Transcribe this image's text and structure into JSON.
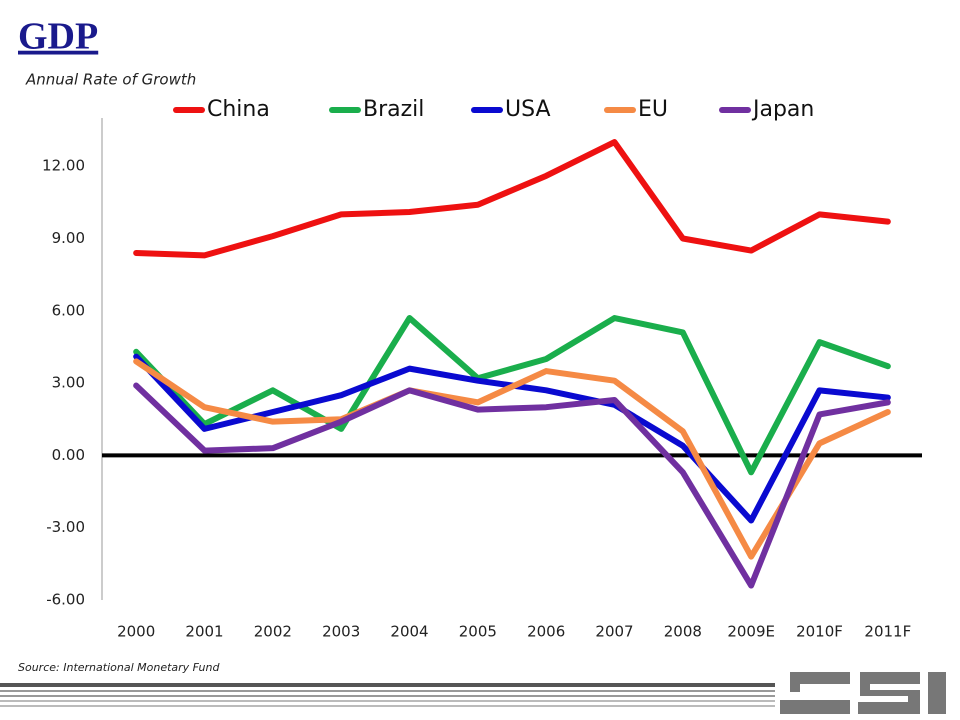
{
  "chart_data": {
    "type": "line",
    "title": "GDP",
    "subtitle": "Annual Rate of Growth",
    "source": "Source:  International Monetary Fund",
    "categories": [
      "2000",
      "2001",
      "2002",
      "2003",
      "2004",
      "2005",
      "2006",
      "2007",
      "2008",
      "2009E",
      "2010F",
      "2011F"
    ],
    "series": [
      {
        "name": "China",
        "color": "#ee1111",
        "values": [
          8.4,
          8.3,
          9.1,
          10.0,
          10.1,
          10.4,
          11.6,
          13.0,
          9.0,
          8.5,
          10.0,
          9.7
        ]
      },
      {
        "name": "Brazil",
        "color": "#1aae4c",
        "values": [
          4.3,
          1.3,
          2.7,
          1.1,
          5.7,
          3.2,
          4.0,
          5.7,
          5.1,
          -0.7,
          4.7,
          3.7
        ]
      },
      {
        "name": "USA",
        "color": "#0a0ad0",
        "values": [
          4.1,
          1.1,
          1.8,
          2.5,
          3.6,
          3.1,
          2.7,
          2.1,
          0.4,
          -2.7,
          2.7,
          2.4
        ]
      },
      {
        "name": "EU",
        "color": "#f58a45",
        "values": [
          3.9,
          2.0,
          1.4,
          1.5,
          2.7,
          2.2,
          3.5,
          3.1,
          1.0,
          -4.2,
          0.5,
          1.8
        ]
      },
      {
        "name": "Japan",
        "color": "#7030a0",
        "values": [
          2.9,
          0.2,
          0.3,
          1.4,
          2.7,
          1.9,
          2.0,
          2.3,
          -0.7,
          -5.4,
          1.7,
          2.2
        ]
      }
    ],
    "ylim": [
      -6,
      14
    ],
    "yticks": [
      {
        "value": -6,
        "label": "-6.00"
      },
      {
        "value": -3,
        "label": "-3.00"
      },
      {
        "value": 0,
        "label": "0.00"
      },
      {
        "value": 3,
        "label": "3.00"
      },
      {
        "value": 6,
        "label": "6.00"
      },
      {
        "value": 9,
        "label": "9.00"
      },
      {
        "value": 12,
        "label": "12.00"
      }
    ],
    "legend": "top"
  }
}
